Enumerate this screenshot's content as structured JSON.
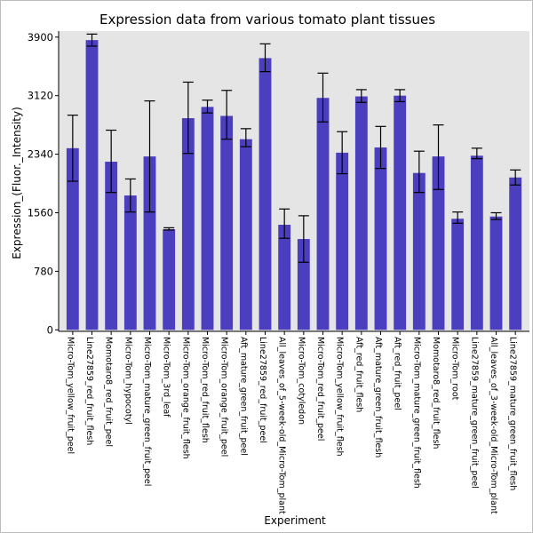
{
  "chart_data": {
    "type": "bar",
    "title": "Expression data from various tomato plant tissues",
    "xlabel": "Experiment",
    "ylabel": "Expression_(Fluor._Intensity)",
    "ylim": [
      -20,
      3980
    ],
    "yticks": [
      0,
      780,
      1560,
      2340,
      3120,
      3900
    ],
    "grid": false,
    "bar_color": "#4b3fbf",
    "plot_background": "#e5e5e5",
    "categories": [
      "Micro-Tom_yellow_fruit_peel",
      "Line27859_red_fruit_flesh",
      "Momotaro8_red_fruit_peel",
      "Micro-Tom_hypocotyl",
      "Micro-Tom_mature_green_fruit_peel",
      "Micro-Tom_3rd_leaf",
      "Micro-Tom_orange_fruit_flesh",
      "Micro-Tom_red_fruit_flesh",
      "Micro-Tom_orange_fruit_peel",
      "Aft_mature_green_fruit_peel",
      "Line27859_red_fruit_peel",
      "All_leaves_of_5-week-old_Micro-Tom_plant",
      "Micro-Tom_cotyledon",
      "Micro-Tom_red_fruit_peel",
      "Micro-Tom_yellow_fruit_flesh",
      "Aft_red_fruit_flesh",
      "Aft_mature_green_fruit_flesh",
      "Aft_red_fruit_peel",
      "Micro-Tom_mature_green_fruit_flesh",
      "Momotaro8_red_fruit_flesh",
      "Micro-Tom_root",
      "Line27859_mature_green_fruit_peel",
      "All_leaves_of_3-week-old_Micro-Tom_plant",
      "Line27859_mature_green_fruit_flesh"
    ],
    "values": [
      2420,
      3860,
      2240,
      1790,
      2310,
      1340,
      2820,
      2970,
      2850,
      2540,
      3620,
      1400,
      1210,
      3090,
      2360,
      3110,
      2430,
      3120,
      2090,
      2310,
      1480,
      2320,
      1510,
      2030
    ],
    "error_low": [
      1980,
      3780,
      1830,
      1570,
      1570,
      1330,
      2350,
      2890,
      2540,
      2440,
      3440,
      1220,
      900,
      2770,
      2080,
      3030,
      2150,
      3040,
      1830,
      1870,
      1420,
      2280,
      1470,
      1930
    ],
    "error_high": [
      2860,
      3940,
      2660,
      2010,
      3050,
      1360,
      3300,
      3060,
      3190,
      2680,
      3810,
      1610,
      1520,
      3420,
      2640,
      3200,
      2710,
      3200,
      2380,
      2730,
      1570,
      2420,
      1560,
      2130
    ]
  }
}
